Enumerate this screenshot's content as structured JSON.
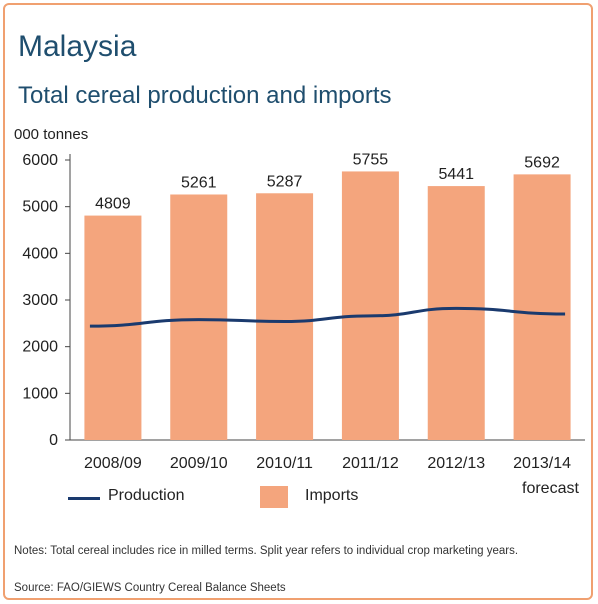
{
  "header": {
    "title": "Malaysia",
    "subtitle": "Total cereal production and imports",
    "unit": "000 tonnes"
  },
  "chart_data": {
    "type": "bar",
    "categories": [
      "2008/09",
      "2009/10",
      "2010/11",
      "2011/12",
      "2012/13",
      "2013/14"
    ],
    "category_note": "forecast",
    "ylim": [
      0,
      6000
    ],
    "yticks": [
      0,
      1000,
      2000,
      3000,
      4000,
      5000,
      6000
    ],
    "series": [
      {
        "name": "Imports",
        "kind": "bar",
        "color": "#f4a57d",
        "values": [
          4809,
          5261,
          5287,
          5755,
          5441,
          5692
        ],
        "labels": [
          "4809",
          "5261",
          "5287",
          "5755",
          "5441",
          "5692"
        ]
      },
      {
        "name": "Production",
        "kind": "line",
        "color": "#1a3a6e",
        "values": [
          2440,
          2580,
          2540,
          2660,
          2820,
          2700
        ]
      }
    ]
  },
  "legend": {
    "production": "Production",
    "imports": "Imports"
  },
  "footer": {
    "notes": "Notes: Total cereal includes rice in milled terms. Split year refers to individual crop marketing years.",
    "source": "Source: FAO/GIEWS Country Cereal Balance Sheets"
  }
}
